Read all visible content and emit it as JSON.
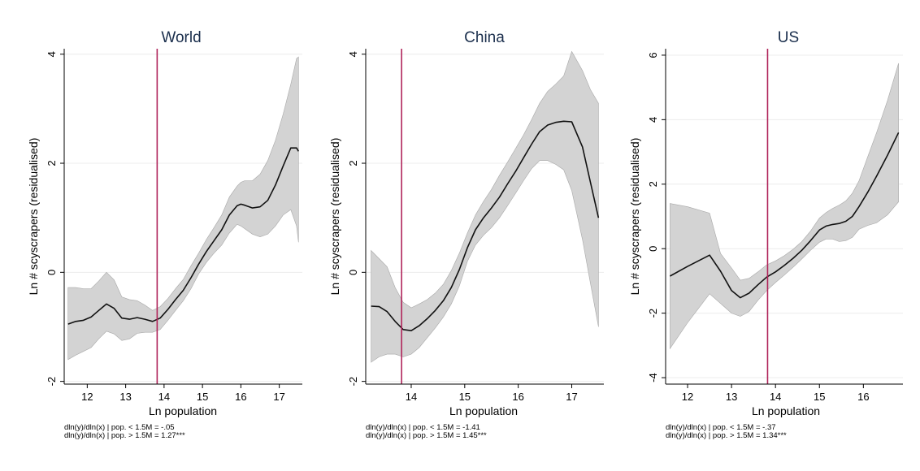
{
  "colors": {
    "band": "#d3d3d3",
    "band_edge": "#a8a8a8",
    "line": "#111111",
    "cutoff": "#b0245a",
    "grid": "#ececec",
    "axis": "#000000"
  },
  "chart_data": [
    {
      "type": "line",
      "title": "World",
      "xlabel": "Ln population",
      "ylabel": "Ln # scyscrapers (residualised)",
      "xlim": [
        11.4,
        17.6
      ],
      "ylim": [
        -2.05,
        4.1
      ],
      "xticks": [
        12,
        13,
        14,
        15,
        16,
        17
      ],
      "yticks": [
        -2,
        0,
        2,
        4
      ],
      "cutoff_x": 13.82,
      "grid": "horizontal",
      "series": [
        {
          "x": [
            11.5,
            11.7,
            11.9,
            12.1,
            12.3,
            12.5,
            12.7,
            12.9,
            13.1,
            13.3,
            13.5,
            13.7,
            13.9,
            14.1,
            14.3,
            14.5,
            14.7,
            14.9,
            15.1,
            15.3,
            15.5,
            15.7,
            15.9,
            16.0,
            16.1,
            16.3,
            16.5,
            16.7,
            16.9,
            17.1,
            17.3,
            17.45,
            17.5
          ],
          "y": [
            -0.95,
            -0.9,
            -0.88,
            -0.82,
            -0.7,
            -0.58,
            -0.66,
            -0.84,
            -0.86,
            -0.83,
            -0.86,
            -0.9,
            -0.84,
            -0.68,
            -0.5,
            -0.33,
            -0.1,
            0.15,
            0.38,
            0.58,
            0.78,
            1.05,
            1.22,
            1.25,
            1.23,
            1.18,
            1.2,
            1.32,
            1.6,
            1.95,
            2.28,
            2.28,
            2.22
          ],
          "lower": [
            -1.6,
            -1.52,
            -1.45,
            -1.38,
            -1.22,
            -1.08,
            -1.13,
            -1.25,
            -1.22,
            -1.12,
            -1.1,
            -1.1,
            -1.05,
            -0.88,
            -0.7,
            -0.52,
            -0.3,
            -0.03,
            0.18,
            0.35,
            0.5,
            0.72,
            0.88,
            0.85,
            0.8,
            0.7,
            0.65,
            0.7,
            0.85,
            1.05,
            1.15,
            0.85,
            0.55
          ],
          "upper": [
            -0.28,
            -0.28,
            -0.3,
            -0.3,
            -0.16,
            0.0,
            -0.14,
            -0.45,
            -0.5,
            -0.52,
            -0.6,
            -0.7,
            -0.63,
            -0.48,
            -0.3,
            -0.13,
            0.12,
            0.35,
            0.6,
            0.82,
            1.05,
            1.38,
            1.58,
            1.65,
            1.68,
            1.68,
            1.8,
            2.05,
            2.42,
            2.9,
            3.45,
            3.92,
            3.95
          ]
        }
      ],
      "annotations": [
        "dln(y)/dln(x) | pop. < 1.5M = -.05",
        "dln(y)/dln(x) | pop. > 1.5M = 1.27***"
      ]
    },
    {
      "type": "line",
      "title": "China",
      "xlabel": "Ln population",
      "ylabel": "Ln # scyscrapers (residualised)",
      "xlim": [
        13.15,
        17.6
      ],
      "ylim": [
        -2.05,
        4.1
      ],
      "xticks": [
        14,
        15,
        16,
        17
      ],
      "yticks": [
        -2,
        0,
        2,
        4
      ],
      "cutoff_x": 13.82,
      "grid": "horizontal",
      "series": [
        {
          "x": [
            13.25,
            13.4,
            13.55,
            13.7,
            13.85,
            14.0,
            14.15,
            14.3,
            14.45,
            14.6,
            14.75,
            14.9,
            15.05,
            15.2,
            15.35,
            15.5,
            15.65,
            15.8,
            15.95,
            16.1,
            16.25,
            16.4,
            16.55,
            16.7,
            16.85,
            17.0,
            17.2,
            17.35,
            17.5
          ],
          "y": [
            -0.62,
            -0.63,
            -0.72,
            -0.9,
            -1.05,
            -1.07,
            -0.98,
            -0.85,
            -0.7,
            -0.52,
            -0.28,
            0.05,
            0.45,
            0.78,
            1.0,
            1.18,
            1.38,
            1.62,
            1.85,
            2.1,
            2.35,
            2.58,
            2.7,
            2.75,
            2.77,
            2.76,
            2.3,
            1.65,
            1.0
          ],
          "lower": [
            -1.65,
            -1.55,
            -1.5,
            -1.5,
            -1.55,
            -1.5,
            -1.38,
            -1.2,
            -1.02,
            -0.82,
            -0.58,
            -0.25,
            0.2,
            0.5,
            0.68,
            0.82,
            1.0,
            1.22,
            1.45,
            1.68,
            1.9,
            2.05,
            2.05,
            1.98,
            1.88,
            1.5,
            0.6,
            -0.2,
            -1.0
          ],
          "upper": [
            0.4,
            0.25,
            0.1,
            -0.28,
            -0.55,
            -0.65,
            -0.58,
            -0.5,
            -0.38,
            -0.22,
            0.03,
            0.35,
            0.72,
            1.05,
            1.3,
            1.52,
            1.78,
            2.02,
            2.27,
            2.52,
            2.8,
            3.1,
            3.32,
            3.45,
            3.6,
            4.05,
            3.7,
            3.35,
            3.1
          ]
        }
      ],
      "annotations": [
        "dln(y)/dln(x) | pop. < 1.5M = -1.41",
        "dln(y)/dln(x) | pop. > 1.5M = 1.45***"
      ]
    },
    {
      "type": "line",
      "title": "US",
      "xlabel": "Ln population",
      "ylabel": "Ln # scyscrapers (residualised)",
      "xlim": [
        11.5,
        16.9
      ],
      "ylim": [
        -4.2,
        6.2
      ],
      "xticks": [
        12,
        13,
        14,
        15,
        16
      ],
      "yticks": [
        -4,
        -2,
        0,
        2,
        4,
        6
      ],
      "cutoff_x": 13.82,
      "grid": "horizontal",
      "series": [
        {
          "x": [
            11.6,
            12.0,
            12.5,
            12.75,
            13.0,
            13.2,
            13.4,
            13.6,
            13.8,
            14.0,
            14.2,
            14.4,
            14.6,
            14.8,
            15.0,
            15.15,
            15.3,
            15.45,
            15.6,
            15.75,
            15.9,
            16.1,
            16.3,
            16.55,
            16.8
          ],
          "y": [
            -0.85,
            -0.55,
            -0.2,
            -0.7,
            -1.3,
            -1.52,
            -1.38,
            -1.12,
            -0.88,
            -0.72,
            -0.52,
            -0.3,
            -0.05,
            0.25,
            0.58,
            0.7,
            0.75,
            0.78,
            0.85,
            1.0,
            1.3,
            1.75,
            2.25,
            2.9,
            3.6
          ],
          "lower": [
            -3.1,
            -2.3,
            -1.4,
            -1.7,
            -2.0,
            -2.1,
            -1.95,
            -1.6,
            -1.3,
            -1.05,
            -0.82,
            -0.58,
            -0.32,
            -0.05,
            0.2,
            0.3,
            0.3,
            0.22,
            0.25,
            0.35,
            0.6,
            0.72,
            0.8,
            1.05,
            1.45
          ],
          "upper": [
            1.4,
            1.3,
            1.1,
            -0.15,
            -0.6,
            -0.98,
            -0.92,
            -0.72,
            -0.5,
            -0.38,
            -0.22,
            -0.02,
            0.22,
            0.55,
            0.95,
            1.12,
            1.25,
            1.35,
            1.48,
            1.72,
            2.1,
            2.85,
            3.6,
            4.6,
            5.75
          ]
        }
      ],
      "annotations": [
        "dln(y)/dln(x) | pop. < 1.5M = -.37",
        "dln(y)/dln(x) | pop. > 1.5M = 1.34***"
      ]
    }
  ]
}
